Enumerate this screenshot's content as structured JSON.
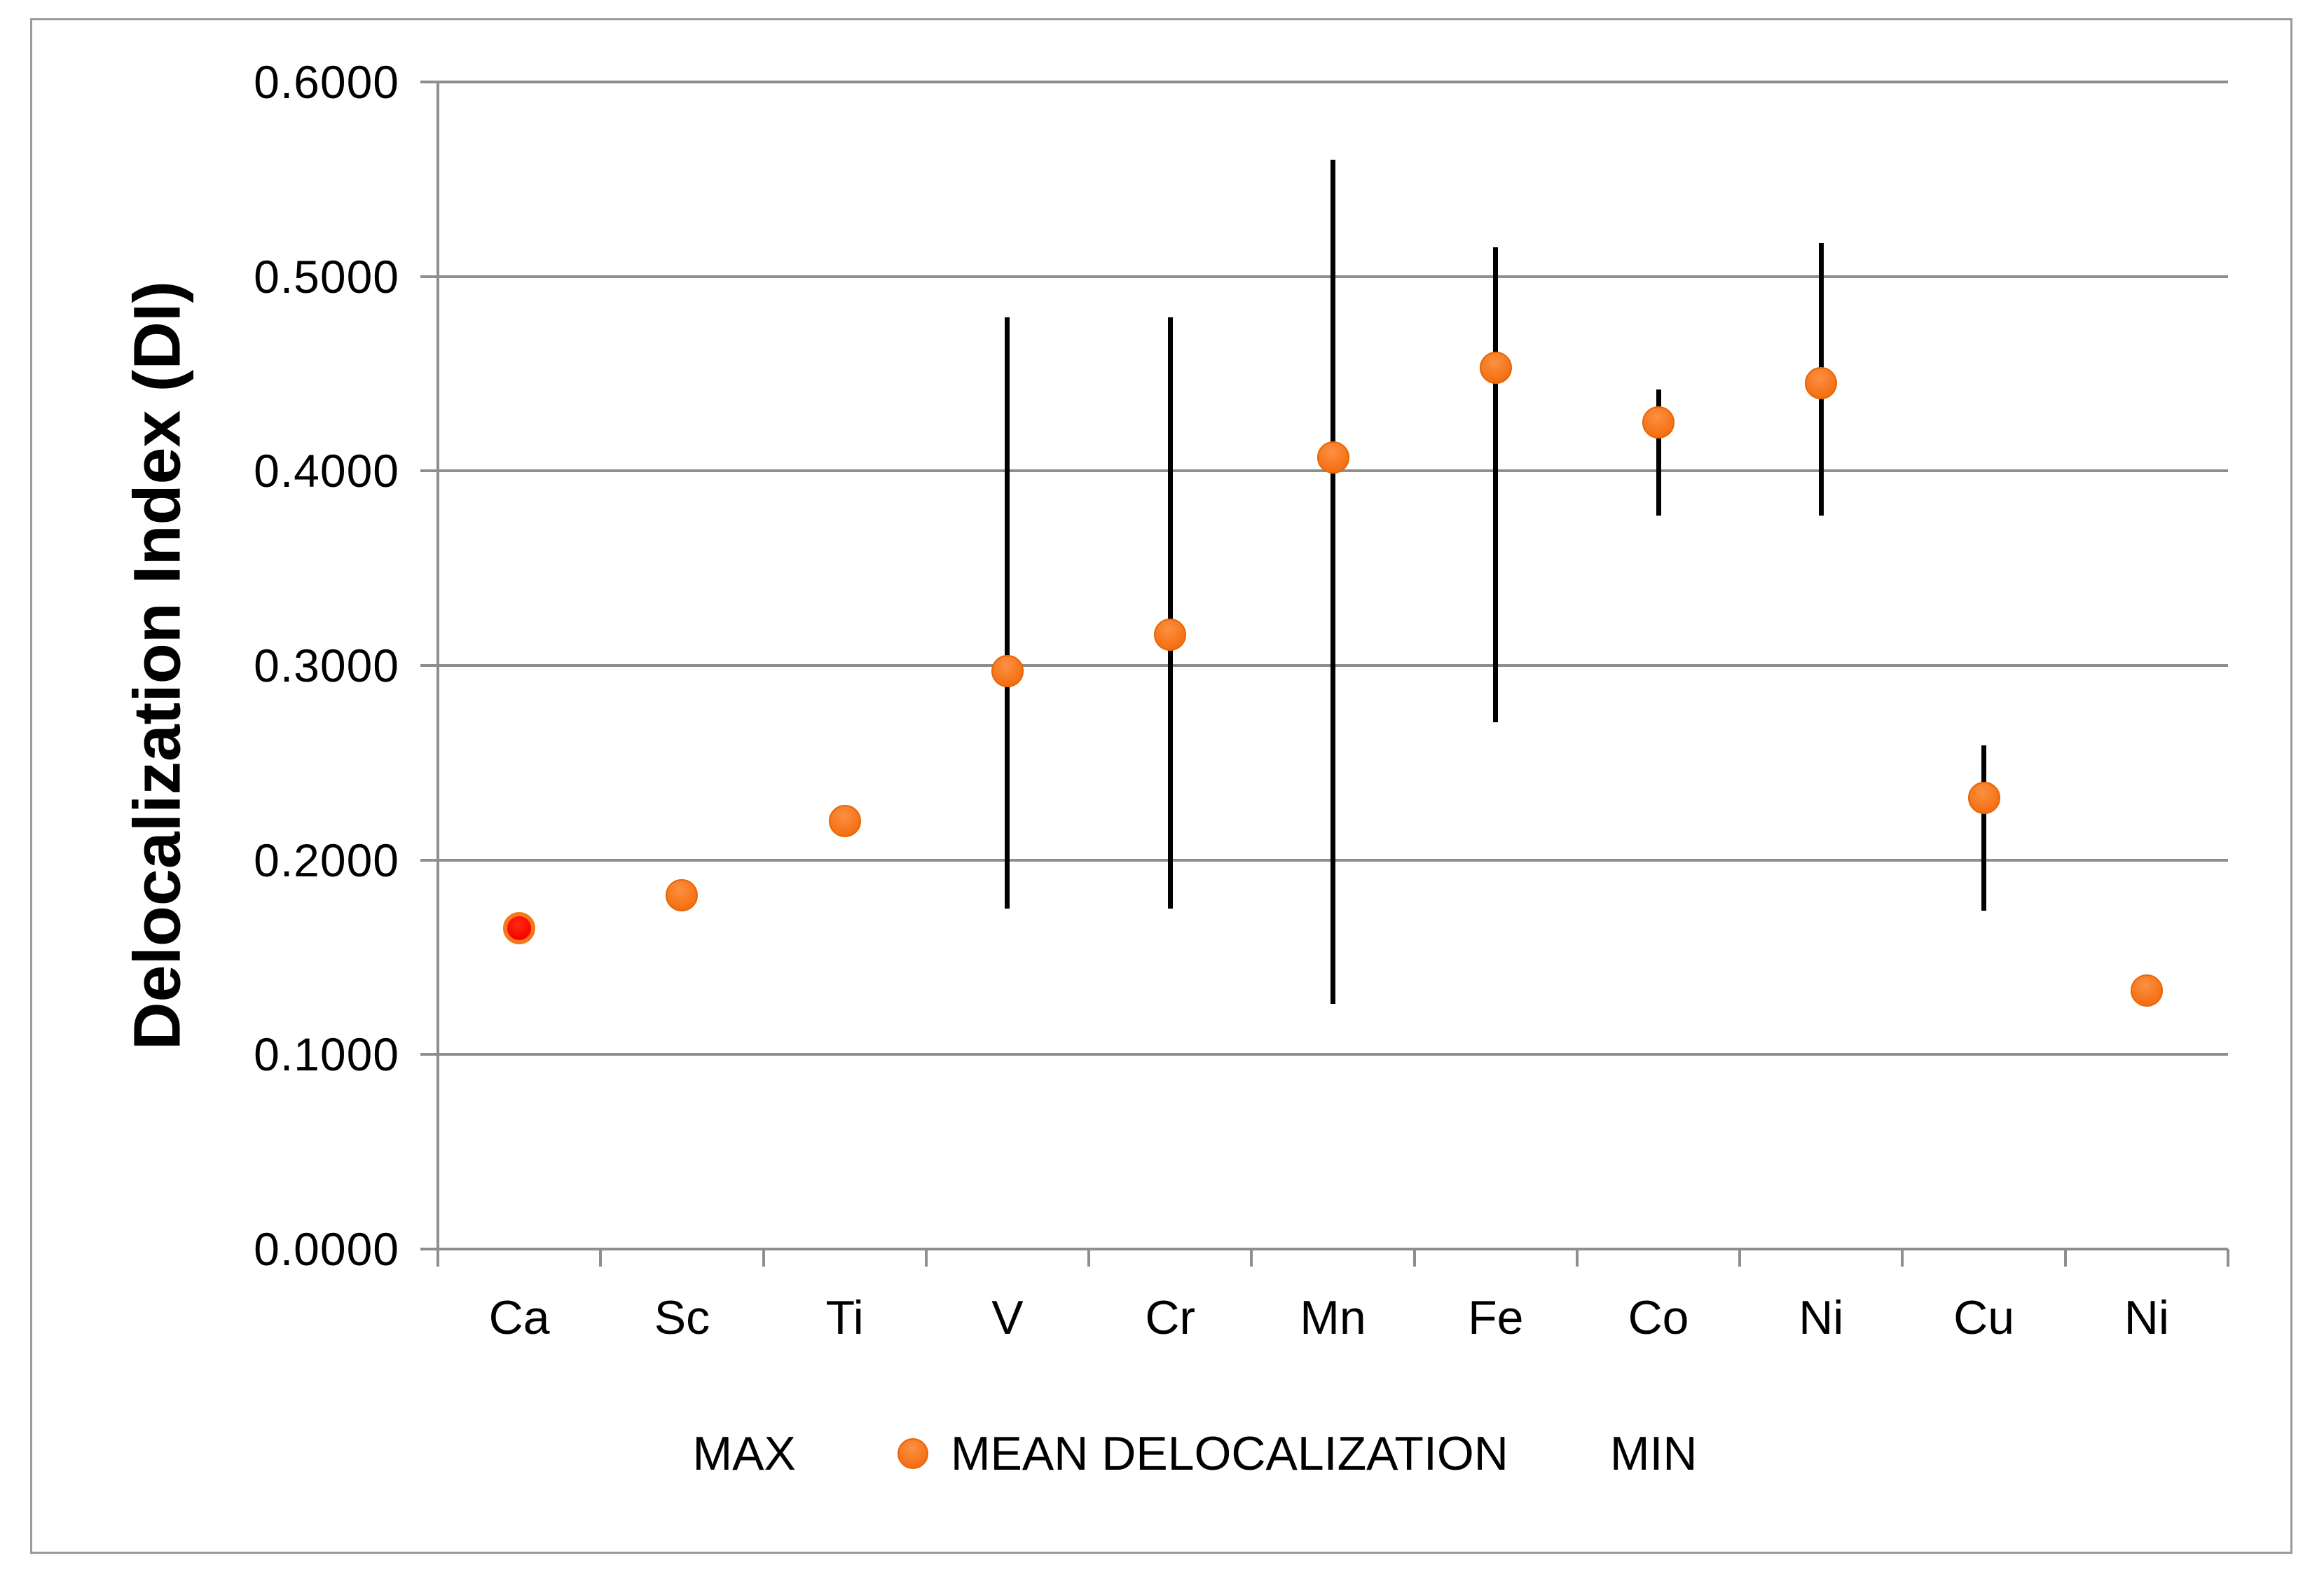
{
  "figure": {
    "background": "#FFFFFF",
    "border_color": "#9B9B9B"
  },
  "colors": {
    "gridline": "#8E8E8E",
    "axis": "#8E8E8E",
    "error_bar": "#000000",
    "mean_marker_fill": "#F7771E",
    "mean_marker_edge": "#E56608",
    "ca_marker_fill": "#F70800",
    "ca_marker_edge": "#F7771E",
    "text": "#000000"
  },
  "legend": {
    "items": [
      {
        "label": "MAX",
        "marker": "none"
      },
      {
        "label": "MEAN DELOCALIZATION",
        "marker": "orange-dot"
      },
      {
        "label": "MIN",
        "marker": "none"
      }
    ]
  },
  "chart_data": {
    "type": "scatter",
    "title": "",
    "xlabel": "",
    "ylabel": "Delocalization Index (DI)",
    "categories": [
      "Ca",
      "Sc",
      "Ti",
      "V",
      "Cr",
      "Mn",
      "Fe",
      "Co",
      "Ni",
      "Cu",
      "Ni"
    ],
    "ylim": [
      0.0,
      0.6
    ],
    "y_tick_step": 0.1,
    "y_tick_labels": [
      "0.0000",
      "0.1000",
      "0.2000",
      "0.3000",
      "0.4000",
      "0.5000",
      "0.6000"
    ],
    "grid": "horizontal",
    "legend_position": "bottom",
    "series": [
      {
        "name": "MAX",
        "values": [
          null,
          null,
          null,
          0.479,
          0.479,
          0.56,
          0.515,
          0.442,
          0.517,
          0.259,
          null
        ]
      },
      {
        "name": "MEAN DELOCALIZATION",
        "values": [
          0.165,
          0.182,
          0.22,
          0.297,
          0.316,
          0.407,
          0.453,
          0.425,
          0.445,
          0.232,
          0.133
        ]
      },
      {
        "name": "MIN",
        "values": [
          null,
          null,
          null,
          0.175,
          0.175,
          0.126,
          0.271,
          0.377,
          0.377,
          0.174,
          null
        ]
      }
    ],
    "point_styles": [
      {
        "category_index": 0,
        "fill": "#F70800",
        "edge": "#F7771E"
      }
    ]
  }
}
